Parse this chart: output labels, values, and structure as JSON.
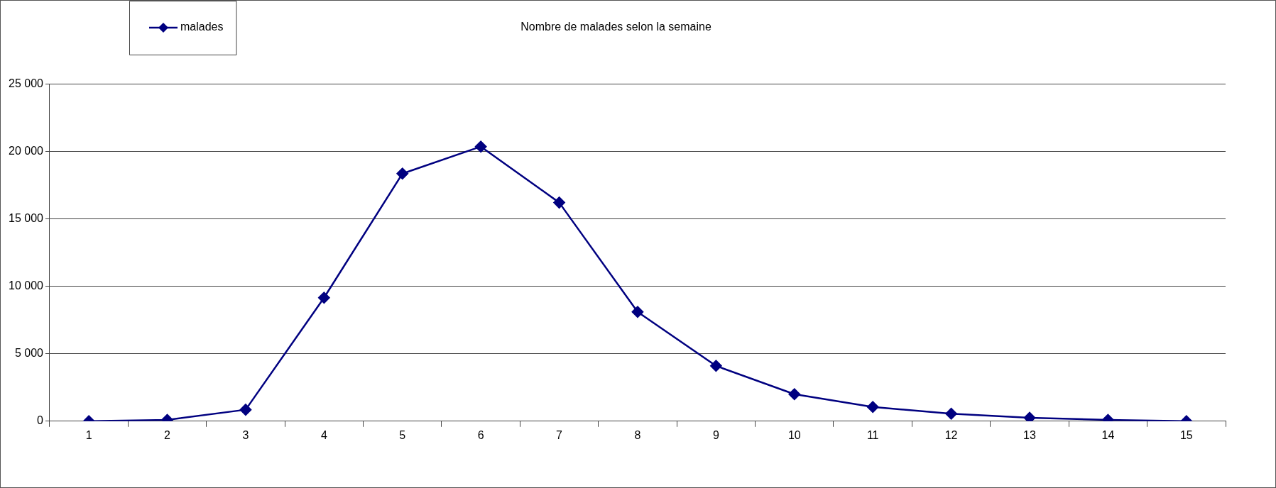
{
  "chart_data": {
    "type": "line",
    "title": "Nombre de malades selon la semaine",
    "categories": [
      "1",
      "2",
      "3",
      "4",
      "5",
      "6",
      "7",
      "8",
      "9",
      "10",
      "11",
      "12",
      "13",
      "14",
      "15"
    ],
    "series": [
      {
        "name": "malades",
        "color": "#000080",
        "values": [
          0,
          100,
          850,
          9150,
          18350,
          20350,
          16200,
          8100,
          4100,
          2000,
          1050,
          550,
          250,
          100,
          0
        ]
      }
    ],
    "ylim": [
      0,
      25000
    ],
    "yticks": [
      {
        "value": 0,
        "label": "0"
      },
      {
        "value": 5000,
        "label": "5 000"
      },
      {
        "value": 10000,
        "label": "10 000"
      },
      {
        "value": 15000,
        "label": "15 000"
      },
      {
        "value": 20000,
        "label": "20 000"
      },
      {
        "value": 25000,
        "label": "25 000"
      }
    ],
    "grid": "y",
    "legend": "top left",
    "marker": "diamond",
    "line_style": "solid"
  }
}
